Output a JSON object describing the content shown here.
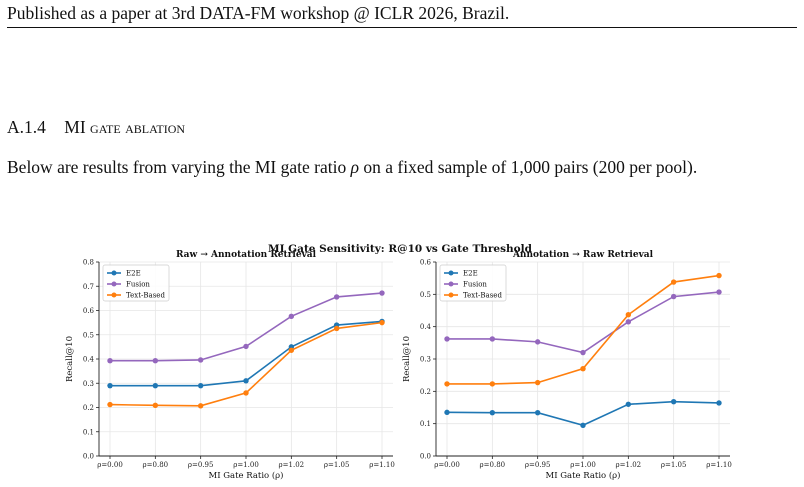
{
  "header": {
    "text": "Published as a paper at 3rd DATA-FM workshop @ ICLR 2026, Brazil."
  },
  "section": {
    "number": "A.1.4",
    "title": "MI gate ablation"
  },
  "paragraph": {
    "before": "Below are results from varying the MI gate ratio ",
    "symbol": "ρ",
    "after": " on a fixed sample of 1,000 pairs (200 per pool)."
  },
  "figure": {
    "suptitle": "MI Gate Sensitivity: R@10 vs Gate Threshold"
  },
  "chart_data": [
    {
      "type": "line",
      "title": "Raw → Annotation Retrieval",
      "xlabel": "MI Gate Ratio (ρ)",
      "ylabel": "Recall@10",
      "categories": [
        "ρ=0.00",
        "ρ=0.80",
        "ρ=0.95",
        "ρ=1.00",
        "ρ=1.02",
        "ρ=1.05",
        "ρ=1.10"
      ],
      "ylim": [
        0,
        0.8
      ],
      "yticks": [
        "0.0",
        "0.1",
        "0.2",
        "0.3",
        "0.4",
        "0.5",
        "0.6",
        "0.7",
        "0.8"
      ],
      "grid": true,
      "legend": "top-left",
      "series": [
        {
          "name": "E2E",
          "color": "#1f77b4",
          "values": [
            0.29,
            0.29,
            0.29,
            0.31,
            0.45,
            0.54,
            0.555
          ]
        },
        {
          "name": "Fusion",
          "color": "#9467bd",
          "values": [
            0.393,
            0.393,
            0.396,
            0.452,
            0.576,
            0.656,
            0.672
          ]
        },
        {
          "name": "Text-Based",
          "color": "#ff7f0e",
          "values": [
            0.212,
            0.209,
            0.207,
            0.26,
            0.436,
            0.526,
            0.55
          ]
        }
      ]
    },
    {
      "type": "line",
      "title": "Annotation → Raw Retrieval",
      "xlabel": "MI Gate Ratio (ρ)",
      "ylabel": "Recall@10",
      "categories": [
        "ρ=0.00",
        "ρ=0.80",
        "ρ=0.95",
        "ρ=1.00",
        "ρ=1.02",
        "ρ=1.05",
        "ρ=1.10"
      ],
      "ylim": [
        0,
        0.6
      ],
      "yticks": [
        "0.0",
        "0.1",
        "0.2",
        "0.3",
        "0.4",
        "0.5",
        "0.6"
      ],
      "grid": true,
      "legend": "top-left",
      "series": [
        {
          "name": "E2E",
          "color": "#1f77b4",
          "values": [
            0.135,
            0.134,
            0.134,
            0.095,
            0.16,
            0.168,
            0.164
          ]
        },
        {
          "name": "Fusion",
          "color": "#9467bd",
          "values": [
            0.362,
            0.362,
            0.353,
            0.32,
            0.415,
            0.493,
            0.507
          ]
        },
        {
          "name": "Text-Based",
          "color": "#ff7f0e",
          "values": [
            0.223,
            0.223,
            0.227,
            0.27,
            0.437,
            0.538,
            0.558
          ]
        }
      ]
    }
  ]
}
